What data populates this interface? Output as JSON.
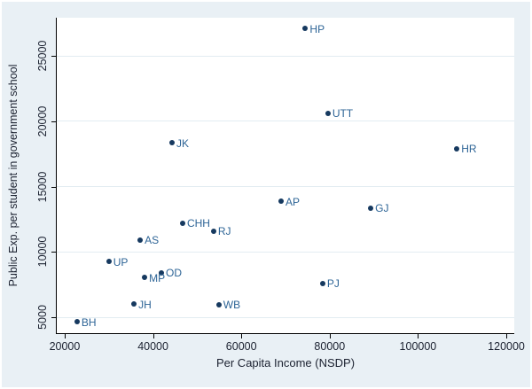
{
  "figure": {
    "background_color": "#e9f0f5",
    "plot_background_color": "#ffffff",
    "gridline_color": "#e3ecf2",
    "axis_color": "#000000",
    "tick_text_color": "#1b2130",
    "marker_color": "#16395f",
    "marker_label_color": "#2d6496"
  },
  "chart_data": {
    "type": "scatter",
    "title": "",
    "xlabel": "Per Capita Income (NSDP)",
    "ylabel": "Public Exp. per student in government school",
    "xlim": [
      18200,
      121800
    ],
    "ylim": [
      3780,
      27920
    ],
    "x_ticks": [
      20000,
      40000,
      60000,
      80000,
      100000,
      120000
    ],
    "x_tick_labels": [
      "20000",
      "40000",
      "60000",
      "80000",
      "100000",
      "120000"
    ],
    "y_ticks": [
      5000,
      10000,
      15000,
      20000,
      25000
    ],
    "y_tick_labels": [
      "5000",
      "10000",
      "15000",
      "20000",
      "25000"
    ],
    "grid": "horizontal",
    "legend": "none",
    "points": [
      {
        "label": "HP",
        "x": 74500,
        "y": 27100
      },
      {
        "label": "UTT",
        "x": 79600,
        "y": 20600
      },
      {
        "label": "JK",
        "x": 44300,
        "y": 18350
      },
      {
        "label": "HR",
        "x": 108800,
        "y": 17900
      },
      {
        "label": "AP",
        "x": 69000,
        "y": 13850
      },
      {
        "label": "GJ",
        "x": 89300,
        "y": 13350
      },
      {
        "label": "CHH",
        "x": 46700,
        "y": 12200
      },
      {
        "label": "RJ",
        "x": 53700,
        "y": 11600
      },
      {
        "label": "AS",
        "x": 37100,
        "y": 10900
      },
      {
        "label": "UP",
        "x": 30000,
        "y": 9250
      },
      {
        "label": "OD",
        "x": 41900,
        "y": 8400
      },
      {
        "label": "MP",
        "x": 38100,
        "y": 8050
      },
      {
        "label": "PJ",
        "x": 78400,
        "y": 7600
      },
      {
        "label": "JH",
        "x": 35700,
        "y": 6000
      },
      {
        "label": "WB",
        "x": 54900,
        "y": 5950
      },
      {
        "label": "BH",
        "x": 22800,
        "y": 4650
      }
    ]
  }
}
